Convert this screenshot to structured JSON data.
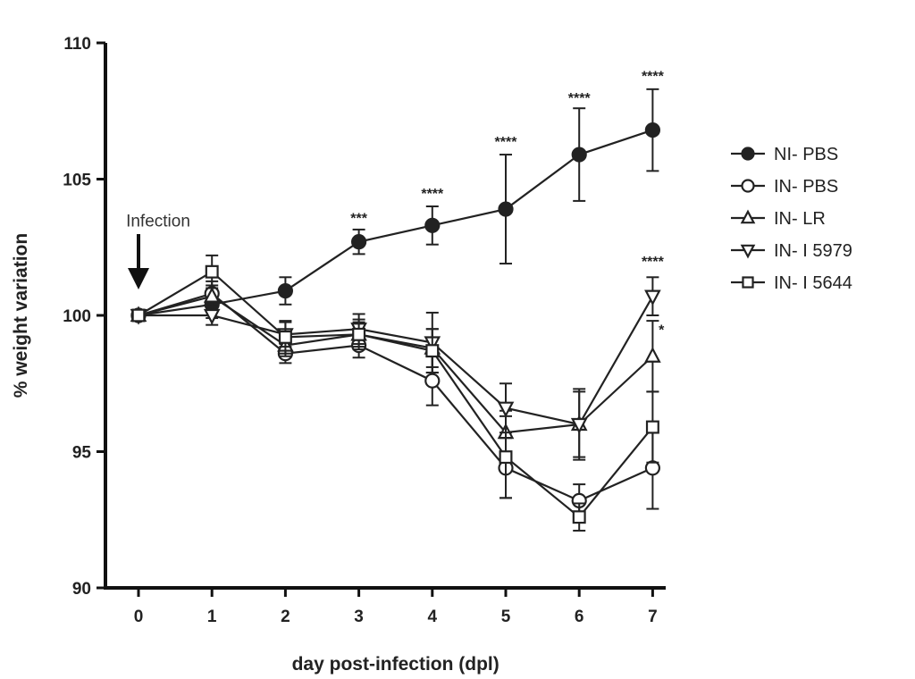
{
  "chart_data": {
    "type": "line",
    "title": "",
    "xlabel": "day post-infection (dpl)",
    "ylabel": "% weight variation",
    "xlim": [
      -0.5,
      7.5
    ],
    "ylim": [
      90,
      110
    ],
    "x": [
      0,
      1,
      2,
      3,
      4,
      5,
      6,
      7
    ],
    "x_tick_labels": [
      "0",
      "1",
      "2",
      "3",
      "4",
      "5",
      "6",
      "7"
    ],
    "y_ticks": [
      90,
      95,
      100,
      105,
      110
    ],
    "y_tick_labels": [
      "90",
      "95",
      "100",
      "105",
      "110"
    ],
    "grid": false,
    "legend_position": "right",
    "series": [
      {
        "name": "NI- PBS",
        "marker": "filled-circle",
        "values": [
          100,
          100.4,
          100.9,
          102.7,
          103.3,
          103.9,
          105.9,
          106.8
        ],
        "errors": [
          0.15,
          0.5,
          0.5,
          0.45,
          0.7,
          2.0,
          1.7,
          1.5
        ]
      },
      {
        "name": "IN- PBS",
        "marker": "open-circle",
        "values": [
          100,
          100.8,
          98.6,
          98.9,
          97.6,
          94.4,
          93.2,
          94.4
        ],
        "errors": [
          0.1,
          0.45,
          0.35,
          0.45,
          0.9,
          1.1,
          0.6,
          1.5
        ]
      },
      {
        "name": "IN- LR",
        "marker": "open-triangle-up",
        "values": [
          100,
          100.7,
          98.9,
          99.3,
          98.8,
          95.7,
          96.0,
          98.5
        ],
        "errors": [
          0.1,
          0.4,
          0.4,
          0.45,
          0.7,
          0.8,
          1.2,
          1.3
        ]
      },
      {
        "name": "IN- I 5979",
        "marker": "open-triangle-down",
        "values": [
          100,
          100.0,
          99.3,
          99.5,
          99.0,
          96.6,
          96.0,
          100.7
        ],
        "errors": [
          0.1,
          0.35,
          0.45,
          0.55,
          1.1,
          0.9,
          1.3,
          0.7
        ]
      },
      {
        "name": "IN- I 5644",
        "marker": "open-square",
        "values": [
          100,
          101.6,
          99.2,
          99.3,
          98.7,
          94.8,
          92.6,
          95.9
        ],
        "errors": [
          0.1,
          0.6,
          0.6,
          0.55,
          0.8,
          1.5,
          0.5,
          1.3
        ]
      }
    ],
    "significance": [
      {
        "x": 3,
        "y": 103.4,
        "text": "***"
      },
      {
        "x": 4,
        "y": 104.3,
        "text": "****"
      },
      {
        "x": 5,
        "y": 106.2,
        "text": "****"
      },
      {
        "x": 6,
        "y": 107.8,
        "text": "****"
      },
      {
        "x": 7,
        "y": 108.6,
        "text": "****"
      },
      {
        "x": 7,
        "y": 101.8,
        "text": "****"
      },
      {
        "x": 7.12,
        "y": 99.3,
        "text": "*"
      }
    ],
    "annotation": {
      "text": "Infection",
      "x": 0,
      "y": 103.5
    },
    "colors": {
      "line": "#222222",
      "axis": "#111111",
      "background": "#ffffff"
    }
  }
}
